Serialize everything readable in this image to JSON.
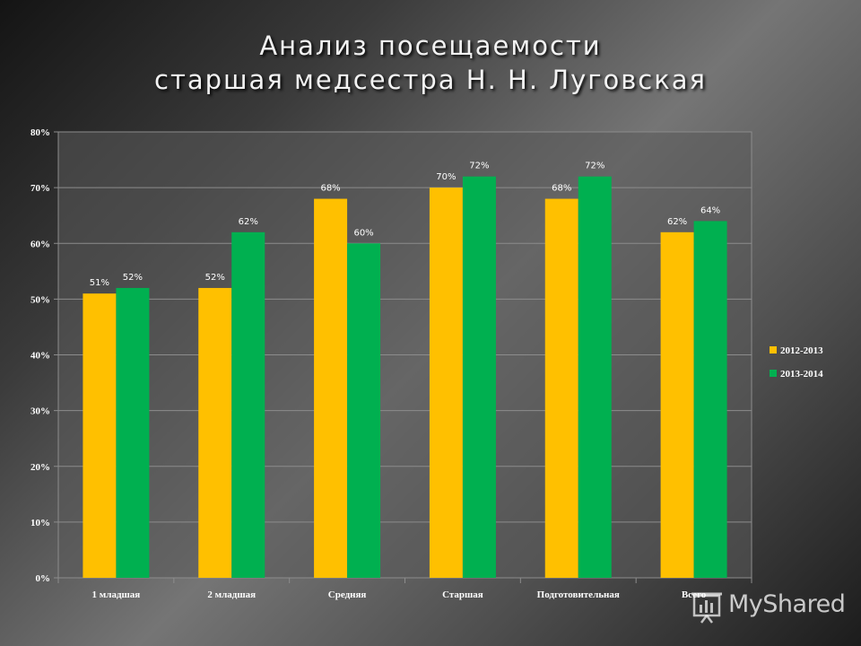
{
  "slide": {
    "title_line1": "Анализ посещаемости",
    "title_line2": "старшая медсестра Н. Н. Луговская"
  },
  "watermark": {
    "text": "MyShared"
  },
  "colors": {
    "series_2012": "#FFC000",
    "series_2013": "#00B050",
    "plot_background": "#595959",
    "gridline": "#8C8C8C",
    "axis_text": "#FFFFFF"
  },
  "chart_data": {
    "type": "bar",
    "title": "",
    "xlabel": "",
    "ylabel": "",
    "categories": [
      "1 младшая",
      "2 младшая",
      "Средняя",
      "Старшая",
      "Подготовительная",
      "Всего"
    ],
    "series": [
      {
        "name": "2012-2013",
        "values": [
          51,
          52,
          68,
          70,
          68,
          62
        ],
        "labels": [
          "51%",
          "52%",
          "68%",
          "70%",
          "68%",
          "62%"
        ]
      },
      {
        "name": "2013-2014",
        "values": [
          52,
          62,
          60,
          72,
          72,
          64
        ],
        "labels": [
          "52%",
          "62%",
          "60%",
          "72%",
          "72%",
          "64%"
        ]
      }
    ],
    "ylim": [
      0,
      80
    ],
    "yticks": [
      "0%",
      "10%",
      "20%",
      "30%",
      "40%",
      "50%",
      "60%",
      "70%",
      "80%"
    ],
    "grid": true,
    "legend_position": "right"
  }
}
